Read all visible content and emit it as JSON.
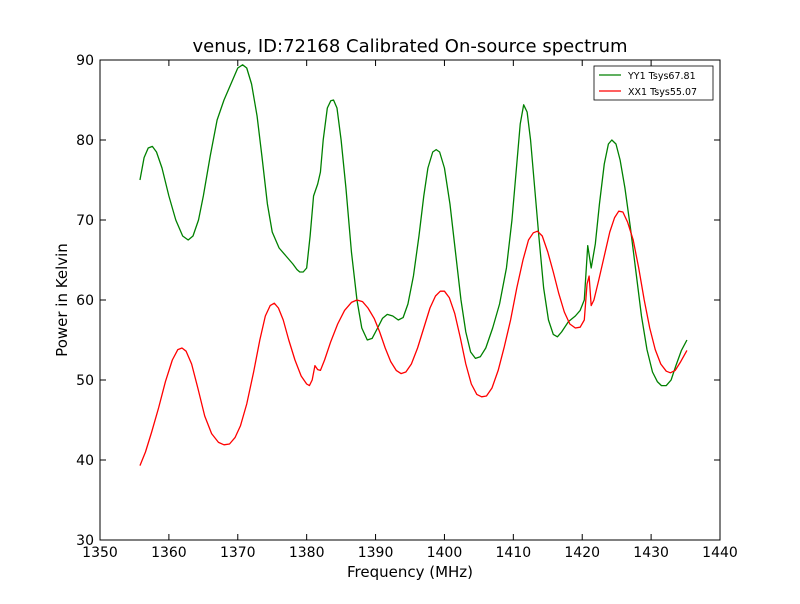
{
  "chart_data": {
    "type": "line",
    "title": "venus, ID:72168 Calibrated On-source spectrum",
    "xlabel": "Frequency (MHz)",
    "ylabel": "Power in Kelvin",
    "xlim": [
      1350,
      1440
    ],
    "ylim": [
      30,
      90
    ],
    "x_ticks": [
      1350,
      1360,
      1370,
      1380,
      1390,
      1400,
      1410,
      1420,
      1430,
      1440
    ],
    "y_ticks": [
      30,
      40,
      50,
      60,
      70,
      80,
      90
    ],
    "grid": false,
    "legend_position": "top-right",
    "series": [
      {
        "name": "YY1 Tsys67.81",
        "color": "#008000",
        "points": [
          [
            1355.8,
            75.0
          ],
          [
            1356.4,
            77.8
          ],
          [
            1357.0,
            79.0
          ],
          [
            1357.6,
            79.2
          ],
          [
            1358.2,
            78.5
          ],
          [
            1359.0,
            76.5
          ],
          [
            1360.0,
            73.0
          ],
          [
            1361.0,
            70.0
          ],
          [
            1362.0,
            68.0
          ],
          [
            1362.8,
            67.5
          ],
          [
            1363.5,
            68.0
          ],
          [
            1364.3,
            70.0
          ],
          [
            1365.0,
            73.0
          ],
          [
            1366.0,
            78.0
          ],
          [
            1367.0,
            82.5
          ],
          [
            1368.0,
            85.0
          ],
          [
            1369.0,
            87.0
          ],
          [
            1370.0,
            89.0
          ],
          [
            1370.7,
            89.4
          ],
          [
            1371.3,
            89.0
          ],
          [
            1372.0,
            87.0
          ],
          [
            1372.8,
            83.0
          ],
          [
            1373.5,
            78.0
          ],
          [
            1374.3,
            72.0
          ],
          [
            1375.0,
            68.5
          ],
          [
            1376.0,
            66.5
          ],
          [
            1377.0,
            65.5
          ],
          [
            1378.0,
            64.5
          ],
          [
            1378.6,
            63.8
          ],
          [
            1379.0,
            63.5
          ],
          [
            1379.5,
            63.5
          ],
          [
            1380.0,
            64.0
          ],
          [
            1380.5,
            68.0
          ],
          [
            1381.0,
            73.0
          ],
          [
            1381.6,
            74.5
          ],
          [
            1382.0,
            76.0
          ],
          [
            1382.4,
            80.0
          ],
          [
            1383.0,
            84.0
          ],
          [
            1383.5,
            84.9
          ],
          [
            1383.9,
            85.0
          ],
          [
            1384.4,
            84.0
          ],
          [
            1385.0,
            80.0
          ],
          [
            1385.7,
            74.0
          ],
          [
            1386.5,
            66.0
          ],
          [
            1387.3,
            60.0
          ],
          [
            1388.0,
            56.5
          ],
          [
            1388.8,
            55.0
          ],
          [
            1389.5,
            55.2
          ],
          [
            1390.3,
            56.5
          ],
          [
            1391.0,
            57.7
          ],
          [
            1391.7,
            58.2
          ],
          [
            1392.5,
            58.0
          ],
          [
            1393.3,
            57.5
          ],
          [
            1394.0,
            57.8
          ],
          [
            1394.7,
            59.5
          ],
          [
            1395.5,
            63.0
          ],
          [
            1396.3,
            68.0
          ],
          [
            1397.0,
            73.0
          ],
          [
            1397.6,
            76.5
          ],
          [
            1398.3,
            78.5
          ],
          [
            1398.8,
            78.8
          ],
          [
            1399.3,
            78.5
          ],
          [
            1400.0,
            76.5
          ],
          [
            1400.8,
            72.0
          ],
          [
            1401.6,
            66.0
          ],
          [
            1402.4,
            60.0
          ],
          [
            1403.1,
            56.0
          ],
          [
            1403.8,
            53.5
          ],
          [
            1404.5,
            52.7
          ],
          [
            1405.2,
            52.9
          ],
          [
            1406.0,
            54.0
          ],
          [
            1407.0,
            56.5
          ],
          [
            1408.0,
            59.5
          ],
          [
            1409.0,
            64.0
          ],
          [
            1409.8,
            70.0
          ],
          [
            1410.5,
            77.0
          ],
          [
            1411.0,
            82.0
          ],
          [
            1411.5,
            84.4
          ],
          [
            1412.0,
            83.5
          ],
          [
            1412.5,
            80.0
          ],
          [
            1413.0,
            75.0
          ],
          [
            1413.7,
            68.0
          ],
          [
            1414.4,
            61.5
          ],
          [
            1415.1,
            57.5
          ],
          [
            1415.8,
            55.7
          ],
          [
            1416.4,
            55.4
          ],
          [
            1417.0,
            56.0
          ],
          [
            1418.0,
            57.3
          ],
          [
            1419.0,
            58.0
          ],
          [
            1419.7,
            58.7
          ],
          [
            1420.3,
            60.0
          ],
          [
            1420.8,
            66.8
          ],
          [
            1421.3,
            64.0
          ],
          [
            1421.9,
            67.0
          ],
          [
            1422.5,
            72.0
          ],
          [
            1423.2,
            77.0
          ],
          [
            1423.8,
            79.5
          ],
          [
            1424.3,
            80.0
          ],
          [
            1424.9,
            79.5
          ],
          [
            1425.5,
            77.5
          ],
          [
            1426.2,
            74.0
          ],
          [
            1427.0,
            69.0
          ],
          [
            1427.8,
            63.5
          ],
          [
            1428.6,
            58.0
          ],
          [
            1429.4,
            53.8
          ],
          [
            1430.2,
            51.0
          ],
          [
            1430.9,
            49.8
          ],
          [
            1431.5,
            49.3
          ],
          [
            1432.2,
            49.3
          ],
          [
            1432.9,
            50.0
          ],
          [
            1433.6,
            51.8
          ],
          [
            1434.4,
            53.7
          ],
          [
            1435.2,
            55.0
          ]
        ]
      },
      {
        "name": "XX1 Tsys55.07",
        "color": "#ff0000",
        "points": [
          [
            1355.8,
            39.3
          ],
          [
            1356.6,
            41.0
          ],
          [
            1357.5,
            43.5
          ],
          [
            1358.5,
            46.5
          ],
          [
            1359.5,
            49.8
          ],
          [
            1360.5,
            52.5
          ],
          [
            1361.3,
            53.8
          ],
          [
            1361.9,
            54.0
          ],
          [
            1362.5,
            53.6
          ],
          [
            1363.3,
            52.0
          ],
          [
            1364.2,
            49.0
          ],
          [
            1365.2,
            45.5
          ],
          [
            1366.2,
            43.3
          ],
          [
            1367.2,
            42.2
          ],
          [
            1368.0,
            41.9
          ],
          [
            1368.8,
            42.0
          ],
          [
            1369.6,
            42.8
          ],
          [
            1370.4,
            44.3
          ],
          [
            1371.3,
            47.0
          ],
          [
            1372.3,
            51.0
          ],
          [
            1373.2,
            55.0
          ],
          [
            1374.0,
            58.0
          ],
          [
            1374.7,
            59.3
          ],
          [
            1375.3,
            59.6
          ],
          [
            1375.9,
            59.0
          ],
          [
            1376.6,
            57.5
          ],
          [
            1377.4,
            55.0
          ],
          [
            1378.3,
            52.5
          ],
          [
            1379.2,
            50.5
          ],
          [
            1380.0,
            49.5
          ],
          [
            1380.4,
            49.3
          ],
          [
            1380.8,
            50.0
          ],
          [
            1381.2,
            51.8
          ],
          [
            1381.6,
            51.3
          ],
          [
            1382.0,
            51.2
          ],
          [
            1382.6,
            52.5
          ],
          [
            1383.5,
            54.8
          ],
          [
            1384.5,
            57.0
          ],
          [
            1385.5,
            58.7
          ],
          [
            1386.5,
            59.7
          ],
          [
            1387.3,
            60.0
          ],
          [
            1388.1,
            59.8
          ],
          [
            1388.9,
            59.0
          ],
          [
            1389.8,
            57.7
          ],
          [
            1390.6,
            56.0
          ],
          [
            1391.4,
            54.0
          ],
          [
            1392.2,
            52.3
          ],
          [
            1393.0,
            51.2
          ],
          [
            1393.7,
            50.8
          ],
          [
            1394.4,
            51.0
          ],
          [
            1395.2,
            52.0
          ],
          [
            1396.1,
            54.0
          ],
          [
            1397.0,
            56.5
          ],
          [
            1397.9,
            59.0
          ],
          [
            1398.7,
            60.5
          ],
          [
            1399.4,
            61.1
          ],
          [
            1400.0,
            61.1
          ],
          [
            1400.7,
            60.3
          ],
          [
            1401.5,
            58.3
          ],
          [
            1402.3,
            55.3
          ],
          [
            1403.1,
            52.0
          ],
          [
            1403.9,
            49.5
          ],
          [
            1404.7,
            48.2
          ],
          [
            1405.4,
            47.9
          ],
          [
            1406.1,
            48.0
          ],
          [
            1406.9,
            49.0
          ],
          [
            1407.8,
            51.2
          ],
          [
            1408.7,
            54.2
          ],
          [
            1409.6,
            57.5
          ],
          [
            1410.5,
            61.5
          ],
          [
            1411.4,
            65.0
          ],
          [
            1412.2,
            67.5
          ],
          [
            1412.9,
            68.4
          ],
          [
            1413.5,
            68.6
          ],
          [
            1414.2,
            68.0
          ],
          [
            1415.0,
            66.0
          ],
          [
            1415.8,
            63.5
          ],
          [
            1416.6,
            60.8
          ],
          [
            1417.4,
            58.5
          ],
          [
            1418.2,
            57.0
          ],
          [
            1419.0,
            56.5
          ],
          [
            1419.7,
            56.6
          ],
          [
            1420.3,
            57.5
          ],
          [
            1420.7,
            62.0
          ],
          [
            1421.0,
            63.0
          ],
          [
            1421.3,
            59.3
          ],
          [
            1421.7,
            60.0
          ],
          [
            1422.4,
            62.5
          ],
          [
            1423.2,
            65.5
          ],
          [
            1424.0,
            68.5
          ],
          [
            1424.7,
            70.3
          ],
          [
            1425.3,
            71.1
          ],
          [
            1425.9,
            71.0
          ],
          [
            1426.6,
            69.7
          ],
          [
            1427.4,
            67.5
          ],
          [
            1428.2,
            64.0
          ],
          [
            1429.0,
            60.0
          ],
          [
            1429.8,
            56.5
          ],
          [
            1430.6,
            53.8
          ],
          [
            1431.4,
            52.0
          ],
          [
            1432.2,
            51.1
          ],
          [
            1432.8,
            50.9
          ],
          [
            1433.5,
            51.2
          ],
          [
            1434.3,
            52.3
          ],
          [
            1435.2,
            53.7
          ]
        ]
      }
    ]
  }
}
